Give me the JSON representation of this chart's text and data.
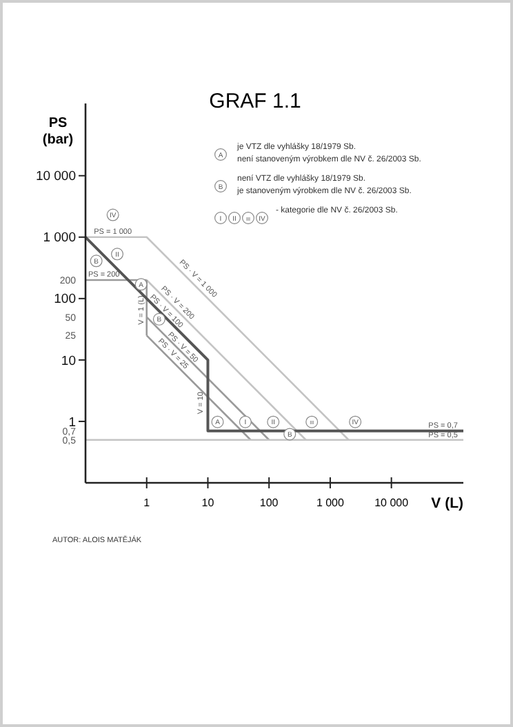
{
  "chart_data": {
    "type": "line",
    "title": "GRAF 1.1",
    "xlabel": "V (L)",
    "ylabel": "PS (bar)",
    "log": "xy",
    "grid": false,
    "marker": "none",
    "line_style": "solid",
    "xlim": [
      0.1,
      150000
    ],
    "ylim": [
      0.1,
      150000
    ],
    "xticks": [
      1,
      10,
      100,
      {
        "value": 1000,
        "label": "1 000"
      },
      {
        "value": 10000,
        "label": "10 000"
      }
    ],
    "yticks": [
      {
        "value": 0.5,
        "label": "0,5"
      },
      {
        "value": 0.7,
        "label": "0,7"
      },
      1,
      10,
      25,
      50,
      100,
      200,
      {
        "value": 1000,
        "label": "1 000"
      },
      {
        "value": 10000,
        "label": "10 000"
      }
    ],
    "series": [
      {
        "color": "#c4c4c4",
        "x": [
          0.1,
          1,
          2000
        ],
        "values": [
          1000,
          1000,
          0.5
        ]
      },
      {
        "color": "#c4c4c4",
        "x": [
          1,
          400
        ],
        "values": [
          200,
          0.5
        ]
      },
      {
        "color": "#9a9a9a",
        "x": [
          0.1,
          1
        ],
        "values": [
          200,
          200
        ]
      },
      {
        "color": "#9a9a9a",
        "x": [
          1,
          1
        ],
        "values": [
          200,
          25
        ]
      },
      {
        "color": "#9a9a9a",
        "x": [
          1,
          100
        ],
        "values": [
          50,
          0.5
        ]
      },
      {
        "color": "#9a9a9a",
        "x": [
          1,
          50
        ],
        "values": [
          25,
          0.5
        ]
      },
      {
        "color": "#c4c4c4",
        "x": [
          0.1,
          150000
        ],
        "values": [
          0.5,
          0.5
        ]
      },
      {
        "color": "#555555",
        "x": [
          0.1,
          10,
          10,
          150000
        ],
        "values": [
          1000,
          10,
          0.7,
          0.7
        ]
      }
    ],
    "annotations": [
      "AUTOR: ALOIS MATĚJÁK",
      "A",
      "je VTZ dle vyhlášky 18/1979 Sb.",
      "není stanoveným výrobkem dle NV č. 26/2003 Sb.",
      "B",
      "není VTZ dle vyhlášky 18/1979 Sb.",
      "je stanoveným výrobkem dle NV č. 26/2003 Sb.",
      "I",
      "II",
      "III",
      "IV",
      "- kategorie dle NV č. 26/2003 Sb.",
      {
        "text": "PS = 1 000",
        "x": 0.28,
        "y": 1000
      },
      {
        "text": "PS = 200",
        "x": 0.2,
        "y": 200
      },
      {
        "text": "PS · V = 1 000",
        "x": 6.9,
        "y": 210
      },
      {
        "text": "PS · V = 200",
        "x": 3.2,
        "y": 85
      },
      {
        "text": "PS · V = 100",
        "x": 2.1,
        "y": 62
      },
      {
        "text": "PS · V = 50",
        "x": 3.9,
        "y": 16
      },
      {
        "text": "PS · V = 25",
        "x": 2.7,
        "y": 12.6
      },
      {
        "text": "V = 1 (L)",
        "x": 1,
        "y": 65
      },
      {
        "text": "V = 10",
        "x": 7.7,
        "y": 2
      },
      {
        "text": "PS = 0,7",
        "x": 70000,
        "y": 0.85
      },
      {
        "text": "PS = 0,5",
        "x": 70000,
        "y": 0.6
      },
      {
        "text": "IV",
        "x": 0.28,
        "y": 2300
      },
      {
        "text": "B",
        "x": 0.15,
        "y": 410
      },
      {
        "text": "II",
        "x": 0.33,
        "y": 530
      },
      {
        "text": "A",
        "x": 0.81,
        "y": 170
      },
      {
        "text": "B",
        "x": 1.6,
        "y": 46
      },
      {
        "text": "A",
        "x": 14.4,
        "y": 0.98
      },
      {
        "text": "I",
        "x": 41,
        "y": 0.98
      },
      {
        "text": "II",
        "x": 117,
        "y": 0.98
      },
      {
        "text": "III",
        "x": 500,
        "y": 0.98
      },
      {
        "text": "IV",
        "x": 2560,
        "y": 0.98
      },
      {
        "text": "B",
        "x": 218,
        "y": 0.62
      }
    ]
  }
}
